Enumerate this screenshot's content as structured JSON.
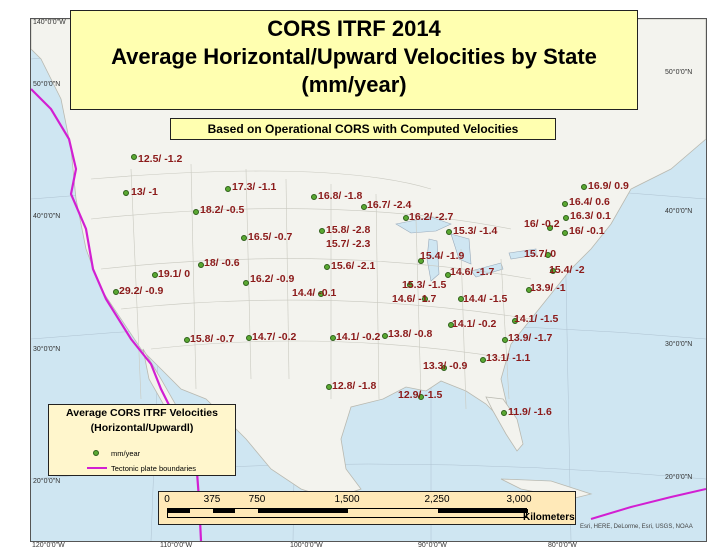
{
  "title": {
    "line1": "CORS ITRF 2014",
    "line2": "Average Horizontal/Upward Velocities by State",
    "line3": "(mm/year)"
  },
  "subtitle": "Based on Operational CORS with Computed Velocities",
  "coords": {
    "top_left": "140°0'0\"W",
    "left_50": "50°0'0\"N",
    "left_40": "40°0'0\"N",
    "left_30": "30°0'0\"N",
    "left_20": "20°0'0\"N",
    "right_50": "50°0'0\"N",
    "right_40": "40°0'0\"N",
    "right_30": "30°0'0\"N",
    "right_20": "20°0'0\"N",
    "bottom_120": "120°0'0\"W",
    "bottom_110": "110°0'0\"W",
    "bottom_100": "100°0'0\"W",
    "bottom_90": "90°0'0\"W",
    "bottom_80": "80°0'0\"W"
  },
  "velocities": [
    {
      "label": "12.5/ -1.2"
    },
    {
      "label": "13/ -1"
    },
    {
      "label": "17.3/ -1.1"
    },
    {
      "label": "16.8/ -1.8"
    },
    {
      "label": "18.2/ -0.5"
    },
    {
      "label": "16.7/ -2.4"
    },
    {
      "label": "16.5/ -0.7"
    },
    {
      "label": "15.8/ -2.8"
    },
    {
      "label": "15.7/ -2.3"
    },
    {
      "label": "16.2/ -2.7"
    },
    {
      "label": "15.3/ -1.4"
    },
    {
      "label": "16/ -0.2"
    },
    {
      "label": "16.9/ 0.9"
    },
    {
      "label": "16.4/ 0.6"
    },
    {
      "label": "16.3/ 0.1"
    },
    {
      "label": "16/ -0.1"
    },
    {
      "label": "15.7/ 0"
    },
    {
      "label": "15.4/ -2"
    },
    {
      "label": "18/ -0.6"
    },
    {
      "label": "19.1/ 0"
    },
    {
      "label": "29.2/ -0.9"
    },
    {
      "label": "16.2/ -0.9"
    },
    {
      "label": "15.6/ -2.1"
    },
    {
      "label": "14.4/ -0.1"
    },
    {
      "label": "15.4/ -1.9"
    },
    {
      "label": "14.6/ -1.7"
    },
    {
      "label": "15.3/ -1.5"
    },
    {
      "label": "14.6/ -1.7"
    },
    {
      "label": "14.4/ -1.5"
    },
    {
      "label": "13.9/ -1"
    },
    {
      "label": "15.8/ -0.7"
    },
    {
      "label": "14.7/ -0.2"
    },
    {
      "label": "14.1/ -0.2"
    },
    {
      "label": "13.8/ -0.8"
    },
    {
      "label": "14.1/ -0.2"
    },
    {
      "label": "14.1/ -1.5"
    },
    {
      "label": "13.9/ -1.7"
    },
    {
      "label": "13.1/ -1.1"
    },
    {
      "label": "13.3/ -0.9"
    },
    {
      "label": "12.8/ -1.8"
    },
    {
      "label": "12.9/ -1.5"
    },
    {
      "label": "11.9/ -1.6"
    }
  ],
  "legend": {
    "title_line1": "Average CORS ITRF Velocities",
    "title_line2": "(Horizontal/Upwardl)",
    "dot_label": "mm/year",
    "line_label": "Tectonic plate boundaries",
    "dot_color": "#5aa832",
    "line_color": "#d21fd2"
  },
  "scale": {
    "ticks": [
      "0",
      "375",
      "750",
      "1,500",
      "2,250",
      "3,000"
    ],
    "unit": "Kilometers"
  },
  "credits": "Esri, HERE, DeLorme, Esri, USGS, NOAA",
  "colors": {
    "title_bg": "#ffffb0",
    "label_color": "#8b1a1a",
    "water": "#cfe6f2",
    "land": "#f3f3ee"
  }
}
